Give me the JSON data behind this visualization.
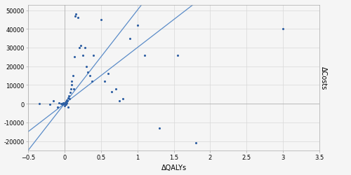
{
  "scatter_x": [
    -0.35,
    -0.2,
    -0.15,
    -0.1,
    -0.08,
    -0.05,
    -0.04,
    -0.03,
    -0.02,
    -0.01,
    0.0,
    0.0,
    0.0,
    0.01,
    0.01,
    0.02,
    0.02,
    0.03,
    0.03,
    0.04,
    0.05,
    0.05,
    0.06,
    0.07,
    0.08,
    0.09,
    0.1,
    0.1,
    0.12,
    0.13,
    0.14,
    0.15,
    0.16,
    0.18,
    0.2,
    0.22,
    0.25,
    0.28,
    0.3,
    0.32,
    0.35,
    0.38,
    0.4,
    0.5,
    0.55,
    0.6,
    0.65,
    0.7,
    0.75,
    0.8,
    0.9,
    1.0,
    1.1,
    1.3,
    1.55,
    1.8,
    3.0
  ],
  "scatter_y": [
    0,
    -500,
    1500,
    -2000,
    500,
    0,
    200,
    -500,
    300,
    100,
    0,
    500,
    -1000,
    200,
    -300,
    1000,
    -500,
    2000,
    500,
    1500,
    3000,
    -2000,
    4000,
    2500,
    6000,
    8000,
    10000,
    12000,
    15000,
    8000,
    25000,
    47000,
    48000,
    46000,
    30000,
    31000,
    26000,
    30000,
    20000,
    17000,
    15000,
    12000,
    26000,
    45000,
    12000,
    16000,
    6500,
    8000,
    1500,
    2500,
    35000,
    42000,
    26000,
    -13000,
    26000,
    -21000,
    40000
  ],
  "line1_slope": 30000,
  "line2_slope": 50000,
  "dot_color": "#2e5fa3",
  "line_color": "#5b8cc8",
  "background_color": "#f5f5f5",
  "grid_color": "#d8d8d8",
  "xlim": [
    -0.5,
    3.5
  ],
  "ylim": [
    -25000,
    53000
  ],
  "xticks": [
    -0.5,
    0.0,
    0.5,
    1.0,
    1.5,
    2.0,
    2.5,
    3.0,
    3.5
  ],
  "yticks": [
    -20000,
    -10000,
    0,
    10000,
    20000,
    30000,
    40000,
    50000
  ],
  "xlabel": "ΔQALYs",
  "ylabel": "ΔCosts",
  "xlabel_fontsize": 7,
  "ylabel_fontsize": 7,
  "tick_fontsize": 6
}
